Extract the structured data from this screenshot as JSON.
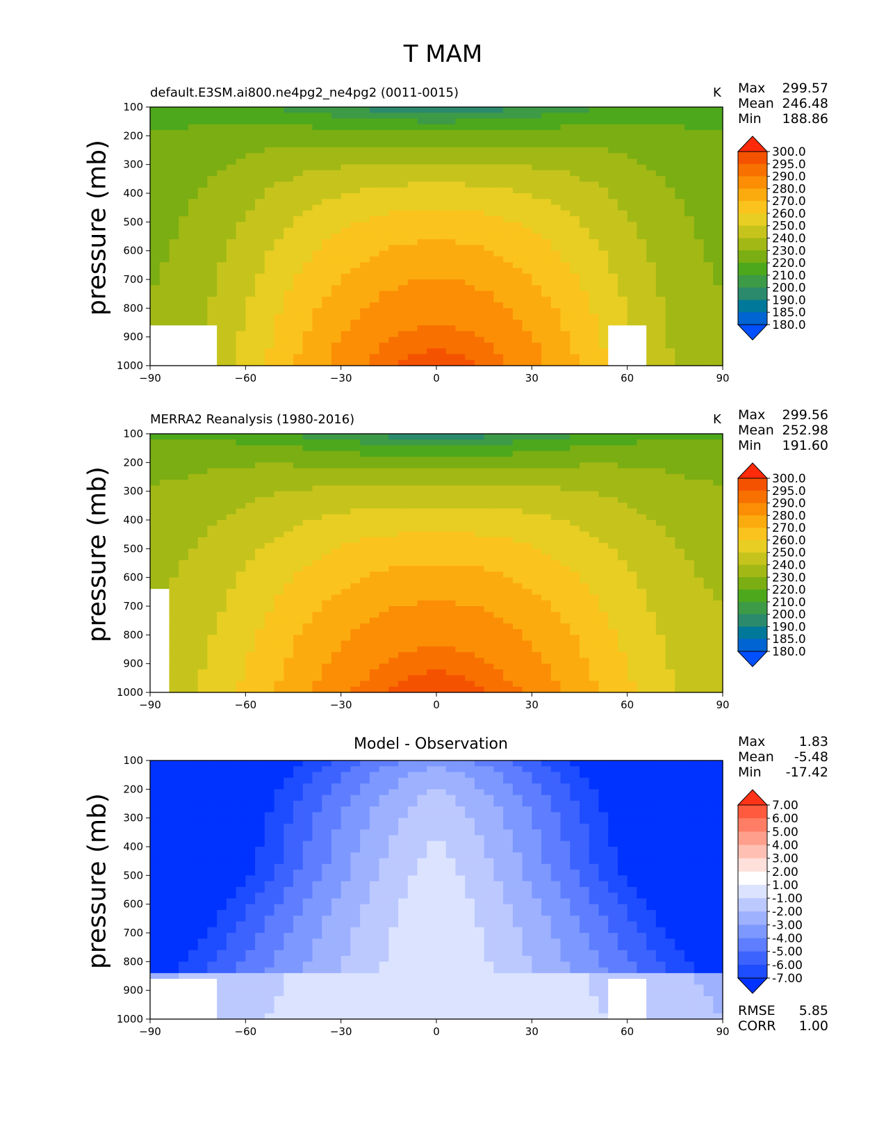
{
  "figure_title": "T MAM",
  "colors": {
    "temp_levels": [
      "#0050ff",
      "#0064d2",
      "#00789a",
      "#2b8a6c",
      "#3d9a46",
      "#4ea81c",
      "#7aae12",
      "#a2b815",
      "#c6c41c",
      "#e8ce22",
      "#fbc31d",
      "#fcab0e",
      "#fb8e05",
      "#f87000",
      "#f55200",
      "#ff2a0a"
    ],
    "diff_levels": [
      "#0033ff",
      "#1e4cff",
      "#3d63ff",
      "#5e7eff",
      "#7d98ff",
      "#9db1ff",
      "#bcc9ff",
      "#dbe3ff",
      "#ffffff",
      "#ffe0da",
      "#ffc0b3",
      "#ff9f8c",
      "#ff7d65",
      "#ff5a3e",
      "#ff3318"
    ]
  },
  "chart_data": [
    {
      "type": "contour",
      "panel_title": "default.E3SM.ai800.ne4pg2_ne4pg2 (0011-0015)",
      "units": "K",
      "ylabel": "pressure (mb)",
      "xlabel": "",
      "x_ticks": [
        "−90",
        "−60",
        "−30",
        "0",
        "30",
        "60",
        "90"
      ],
      "y_ticks": [
        "100",
        "200",
        "300",
        "400",
        "500",
        "600",
        "700",
        "800",
        "900",
        "1000"
      ],
      "xlim": [
        -90,
        90
      ],
      "ylim": [
        1000,
        100
      ],
      "stats": {
        "max_label": "Max",
        "max": "299.57",
        "mean_label": "Mean",
        "mean": "246.48",
        "min_label": "Min",
        "min": "188.86"
      },
      "colorbar_labels": [
        "300.0",
        "295.0",
        "290.0",
        "280.0",
        "270.0",
        "260.0",
        "250.0",
        "240.0",
        "230.0",
        "220.0",
        "210.0",
        "200.0",
        "190.0",
        "185.0",
        "180.0"
      ],
      "colorbar_values": [
        300,
        295,
        290,
        280,
        270,
        260,
        250,
        240,
        230,
        220,
        210,
        200,
        190,
        185,
        180
      ],
      "field": {
        "t_surface_max": 298,
        "t_surface_min": 232,
        "t_top_center": 192,
        "t_top_edge": 214
      },
      "masked_regions": [
        {
          "lat_from": -90,
          "lat_to": -69,
          "p_from": 870,
          "p_to": 1000
        },
        {
          "lat_from": 55,
          "lat_to": 67,
          "p_from": 870,
          "p_to": 1000
        }
      ]
    },
    {
      "type": "contour",
      "panel_title": "MERRA2 Reanalysis (1980-2016)",
      "units": "K",
      "ylabel": "pressure (mb)",
      "xlabel": "",
      "x_ticks": [
        "−90",
        "−60",
        "−30",
        "0",
        "30",
        "60",
        "90"
      ],
      "y_ticks": [
        "100",
        "200",
        "300",
        "400",
        "500",
        "600",
        "700",
        "800",
        "900",
        "1000"
      ],
      "xlim": [
        -90,
        90
      ],
      "ylim": [
        1000,
        100
      ],
      "stats": {
        "max_label": "Max",
        "max": "299.56",
        "mean_label": "Mean",
        "mean": "252.98",
        "min_label": "Min",
        "min": "191.60"
      },
      "colorbar_labels": [
        "300.0",
        "295.0",
        "290.0",
        "280.0",
        "270.0",
        "260.0",
        "250.0",
        "240.0",
        "230.0",
        "220.0",
        "210.0",
        "200.0",
        "190.0",
        "185.0",
        "180.0"
      ],
      "colorbar_values": [
        300,
        295,
        290,
        280,
        270,
        260,
        250,
        240,
        230,
        220,
        210,
        200,
        190,
        185,
        180
      ],
      "field": {
        "t_surface_max": 299,
        "t_surface_min": 244,
        "t_top_center": 194,
        "t_top_edge": 217
      },
      "masked_regions": [
        {
          "lat_from": -90,
          "lat_to": -85,
          "p_from": 650,
          "p_to": 1000
        }
      ]
    },
    {
      "type": "contour",
      "panel_title": "Model - Observation",
      "units": "",
      "ylabel": "pressure (mb)",
      "xlabel": "",
      "x_ticks": [
        "−90",
        "−60",
        "−30",
        "0",
        "30",
        "60",
        "90"
      ],
      "y_ticks": [
        "100",
        "200",
        "300",
        "400",
        "500",
        "600",
        "700",
        "800",
        "900",
        "1000"
      ],
      "xlim": [
        -90,
        90
      ],
      "ylim": [
        1000,
        100
      ],
      "stats": {
        "max_label": "Max",
        "max": "1.83",
        "mean_label": "Mean",
        "mean": "-5.48",
        "min_label": "Min",
        "min": "-17.42"
      },
      "colorbar_labels": [
        "7.00",
        "6.00",
        "5.00",
        "4.00",
        "3.00",
        "2.00",
        "1.00",
        "-1.00",
        "-2.00",
        "-3.00",
        "-4.00",
        "-5.00",
        "-6.00",
        "-7.00"
      ],
      "colorbar_values": [
        7,
        6,
        5,
        4,
        3,
        2,
        1,
        -1,
        -2,
        -3,
        -4,
        -5,
        -6,
        -7
      ],
      "metrics": {
        "rmse_label": "RMSE",
        "rmse": "5.85",
        "corr_label": "CORR",
        "corr": "1.00"
      },
      "field": {
        "diff_edge": -12,
        "diff_center": 0
      },
      "masked_regions": [
        {
          "lat_from": -90,
          "lat_to": -69,
          "p_from": 870,
          "p_to": 1000
        },
        {
          "lat_from": 55,
          "lat_to": 67,
          "p_from": 870,
          "p_to": 1000
        }
      ]
    }
  ]
}
